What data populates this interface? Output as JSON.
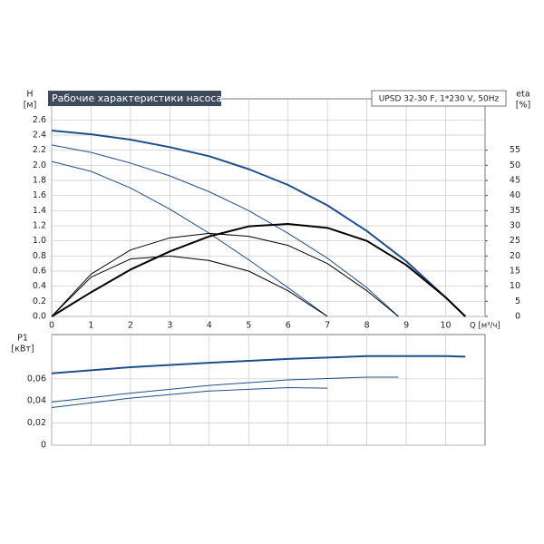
{
  "chart_data": [
    {
      "type": "line",
      "title": "Рабочие характеристики насоса",
      "subtitle": "UPSD 32-30 F, 1*230 V, 50Hz",
      "y_label": "H",
      "y_unit": "[м]",
      "y2_label": "eta",
      "y2_unit": "[%]",
      "x_label": "Q [м³/ч]",
      "xlim": [
        0,
        11
      ],
      "xticks": [
        0,
        1,
        2,
        3,
        4,
        5,
        6,
        7,
        8,
        9,
        10
      ],
      "ylim": [
        0,
        2.88
      ],
      "yticks": [
        {
          "value": 0,
          "label": "0.0"
        },
        0.2,
        0.4,
        0.6,
        0.8,
        {
          "value": 1,
          "label": "1.0"
        },
        1.2,
        1.4,
        1.6,
        1.8,
        {
          "value": 2,
          "label": "2.0"
        },
        2.2,
        2.4,
        2.6
      ],
      "y2lim": [
        0,
        72
      ],
      "y2ticks": [
        0,
        5,
        10,
        15,
        20,
        25,
        30,
        35,
        40,
        45,
        50,
        55
      ],
      "grid": true,
      "series": [
        {
          "color": "#1f4e8c",
          "x": [
            0,
            1,
            2,
            3,
            4,
            5,
            6,
            7,
            8,
            9,
            10,
            10.5
          ],
          "values": [
            2.46,
            2.41,
            2.34,
            2.24,
            2.12,
            1.95,
            1.74,
            1.47,
            1.13,
            0.73,
            0.25,
            0
          ]
        },
        {
          "color": "#1f4e8c",
          "x": [
            0,
            1,
            2,
            3,
            4,
            5,
            6,
            7,
            8,
            8.8
          ],
          "values": [
            2.27,
            2.17,
            2.03,
            1.86,
            1.65,
            1.4,
            1.1,
            0.77,
            0.38,
            0
          ]
        },
        {
          "color": "#1f4e8c",
          "x": [
            0,
            1,
            2,
            3,
            4,
            5,
            6,
            7
          ],
          "values": [
            2.05,
            1.92,
            1.7,
            1.42,
            1.1,
            0.75,
            0.38,
            0
          ]
        },
        {
          "color": "#000000",
          "axis": "y2",
          "x": [
            0,
            1,
            2,
            3,
            4,
            5,
            6,
            7,
            8,
            9,
            10,
            10.5
          ],
          "values": [
            0,
            8,
            15.5,
            21.5,
            26.5,
            29.8,
            30.6,
            29.3,
            25,
            17,
            6.3,
            0
          ]
        },
        {
          "color": "#000000",
          "axis": "y2",
          "x": [
            0,
            1,
            2,
            3,
            4,
            5,
            6,
            7,
            8,
            8.8
          ],
          "values": [
            0,
            14,
            22,
            26,
            27.5,
            26.5,
            23.5,
            17.5,
            8.5,
            0
          ]
        },
        {
          "color": "#000000",
          "axis": "y2",
          "x": [
            0,
            1,
            2,
            3,
            4,
            5,
            6,
            7
          ],
          "values": [
            0,
            13,
            19,
            20,
            18.5,
            15,
            8.5,
            0
          ]
        }
      ]
    },
    {
      "type": "line",
      "y_label": "P1",
      "y_unit": "[кВт]",
      "xlim": [
        0,
        11
      ],
      "ylim": [
        0,
        0.1
      ],
      "yticks": [
        0,
        {
          "value": 0.02,
          "label": "0,02"
        },
        {
          "value": 0.04,
          "label": "0,04"
        },
        {
          "value": 0.06,
          "label": "0,06"
        }
      ],
      "grid": true,
      "series": [
        {
          "color": "#1f4e8c",
          "x": [
            0,
            2,
            4,
            6,
            8,
            10,
            10.5
          ],
          "values": [
            0.065,
            0.0705,
            0.0745,
            0.078,
            0.0805,
            0.0805,
            0.08
          ]
        },
        {
          "color": "#1f4e8c",
          "x": [
            0,
            2,
            4,
            6,
            8,
            8.8
          ],
          "values": [
            0.039,
            0.047,
            0.054,
            0.059,
            0.0615,
            0.0615
          ]
        },
        {
          "color": "#1f4e8c",
          "x": [
            0,
            2,
            4,
            6,
            7
          ],
          "values": [
            0.034,
            0.0425,
            0.049,
            0.052,
            0.0515
          ]
        }
      ]
    }
  ]
}
